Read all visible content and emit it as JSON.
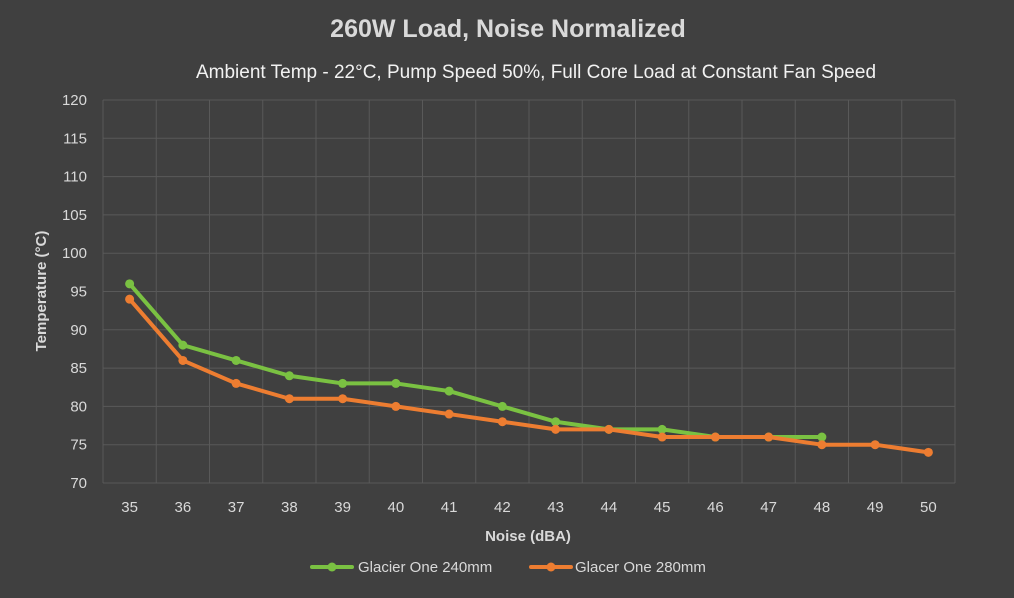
{
  "chart_data": {
    "type": "line",
    "title": "260W Load, Noise Normalized",
    "subtitle": "Ambient Temp - 22°C, Pump Speed 50%, Full Core Load at Constant Fan Speed",
    "xlabel": "Noise (dBA)",
    "ylabel": "Temperature (°C)",
    "categories": [
      "35",
      "36",
      "37",
      "38",
      "39",
      "40",
      "41",
      "42",
      "43",
      "44",
      "45",
      "46",
      "47",
      "48",
      "49",
      "50"
    ],
    "yticks": [
      "70",
      "75",
      "80",
      "85",
      "90",
      "95",
      "100",
      "105",
      "110",
      "115",
      "120"
    ],
    "ylim": [
      70,
      120
    ],
    "grid": true,
    "legend_position": "bottom",
    "series": [
      {
        "name": "Glacier One 240mm",
        "color": "#7ac142",
        "values": [
          96,
          88,
          86,
          84,
          83,
          83,
          82,
          80,
          78,
          77,
          77,
          76,
          76,
          76,
          null,
          null
        ]
      },
      {
        "name": "Glacer One 280mm",
        "color": "#ed7d31",
        "values": [
          94,
          86,
          83,
          81,
          81,
          80,
          79,
          78,
          77,
          77,
          76,
          76,
          76,
          75,
          75,
          74
        ]
      }
    ]
  }
}
